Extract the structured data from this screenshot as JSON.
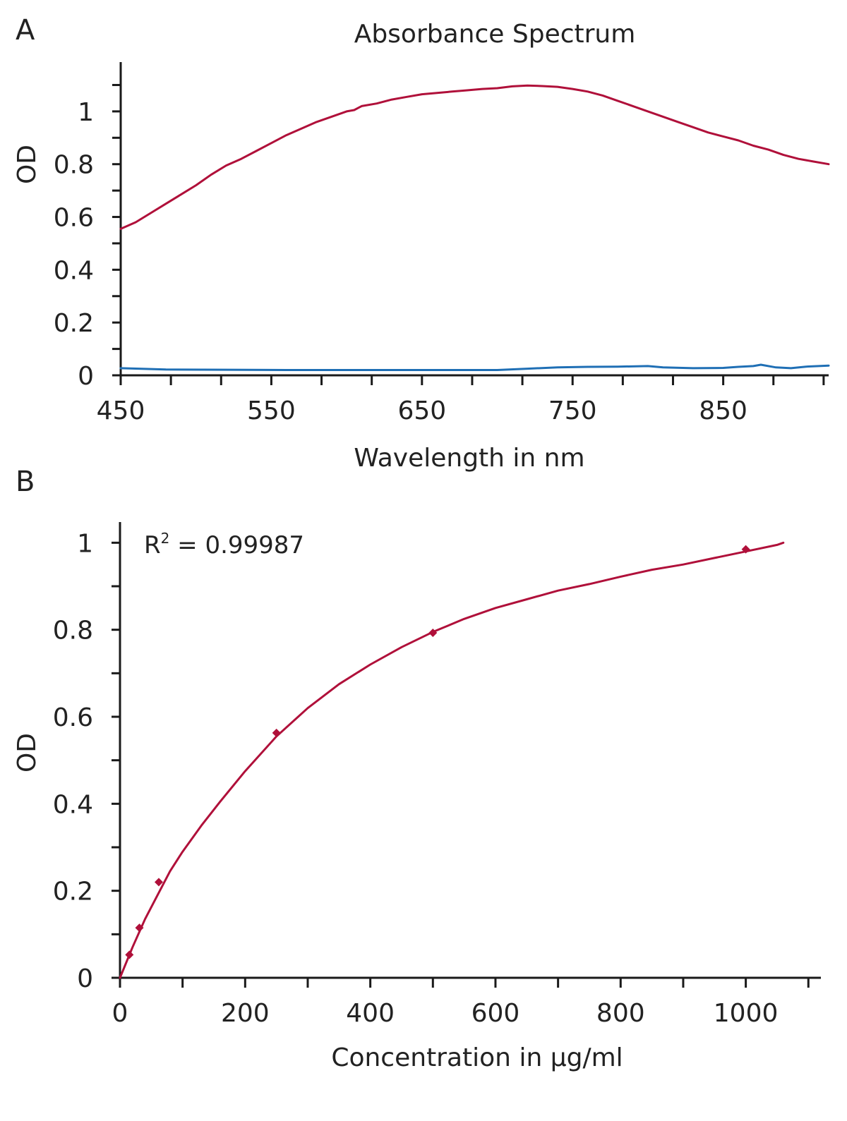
{
  "chart_data": [
    {
      "panel_label": "A",
      "type": "line",
      "title": "Absorbance Spectrum",
      "xlabel": "Wavelength in nm",
      "ylabel": "OD",
      "xlim": [
        450,
        920
      ],
      "ylim": [
        0,
        1.12
      ],
      "x_ticks": [
        450,
        550,
        650,
        750,
        850
      ],
      "x_tick_labels": [
        "450",
        "550",
        "650",
        "750",
        "850"
      ],
      "y_ticks": [
        0,
        0.2,
        0.4,
        0.6,
        0.8,
        1
      ],
      "y_tick_labels": [
        "0",
        "0.2",
        "0.4",
        "0.6",
        "0.8",
        "1"
      ],
      "grid": false,
      "series": [
        {
          "color": "#b0103a",
          "x": [
            450,
            460,
            470,
            480,
            490,
            500,
            510,
            520,
            530,
            540,
            550,
            560,
            570,
            580,
            590,
            600,
            605,
            610,
            620,
            630,
            640,
            650,
            660,
            670,
            680,
            690,
            700,
            710,
            720,
            730,
            740,
            750,
            760,
            770,
            780,
            790,
            800,
            810,
            820,
            830,
            840,
            850,
            860,
            870,
            880,
            890,
            900,
            910,
            920
          ],
          "values": [
            0.555,
            0.58,
            0.615,
            0.65,
            0.685,
            0.72,
            0.76,
            0.795,
            0.82,
            0.85,
            0.88,
            0.91,
            0.935,
            0.96,
            0.98,
            1.0,
            1.005,
            1.02,
            1.03,
            1.045,
            1.055,
            1.065,
            1.07,
            1.075,
            1.08,
            1.085,
            1.088,
            1.095,
            1.098,
            1.096,
            1.093,
            1.085,
            1.075,
            1.06,
            1.04,
            1.02,
            1.0,
            0.98,
            0.96,
            0.94,
            0.92,
            0.905,
            0.89,
            0.87,
            0.855,
            0.835,
            0.82,
            0.81,
            0.8
          ]
        },
        {
          "color": "#1f6fb5",
          "x": [
            450,
            480,
            520,
            560,
            600,
            650,
            700,
            720,
            740,
            760,
            780,
            800,
            810,
            830,
            850,
            860,
            870,
            875,
            885,
            895,
            905,
            920
          ],
          "values": [
            0.027,
            0.022,
            0.021,
            0.02,
            0.02,
            0.02,
            0.02,
            0.025,
            0.03,
            0.032,
            0.033,
            0.035,
            0.03,
            0.027,
            0.028,
            0.032,
            0.035,
            0.04,
            0.03,
            0.027,
            0.033,
            0.037
          ]
        }
      ]
    },
    {
      "panel_label": "B",
      "type": "scatter",
      "xlabel": "Concentration in µg/ml",
      "ylabel": "OD",
      "xlim": [
        0,
        1120
      ],
      "ylim": [
        0,
        1.02
      ],
      "x_ticks": [
        0,
        200,
        400,
        600,
        800,
        1000
      ],
      "x_tick_labels": [
        "0",
        "200",
        "400",
        "600",
        "800",
        "1000"
      ],
      "y_ticks": [
        0,
        0.2,
        0.4,
        0.6,
        0.8,
        1
      ],
      "y_tick_labels": [
        "0",
        "0.2",
        "0.4",
        "0.6",
        "0.8",
        "1"
      ],
      "grid": false,
      "annotation": {
        "prefix": "R",
        "superscript": "2",
        "text": " = 0.99987"
      },
      "points": {
        "color": "#b0103a",
        "x": [
          15,
          31,
          62,
          250,
          500,
          1000
        ],
        "y": [
          0.053,
          0.115,
          0.22,
          0.563,
          0.793,
          0.985
        ]
      },
      "fit": {
        "color": "#b0103a",
        "x": [
          0,
          20,
          40,
          60,
          80,
          100,
          130,
          160,
          200,
          250,
          300,
          350,
          400,
          450,
          500,
          550,
          600,
          650,
          700,
          750,
          800,
          850,
          900,
          950,
          1000,
          1050,
          1060
        ],
        "y": [
          0.0,
          0.07,
          0.135,
          0.19,
          0.245,
          0.29,
          0.35,
          0.405,
          0.475,
          0.555,
          0.62,
          0.675,
          0.72,
          0.76,
          0.795,
          0.825,
          0.85,
          0.87,
          0.89,
          0.905,
          0.922,
          0.938,
          0.95,
          0.965,
          0.98,
          0.995,
          1.0
        ]
      }
    }
  ]
}
